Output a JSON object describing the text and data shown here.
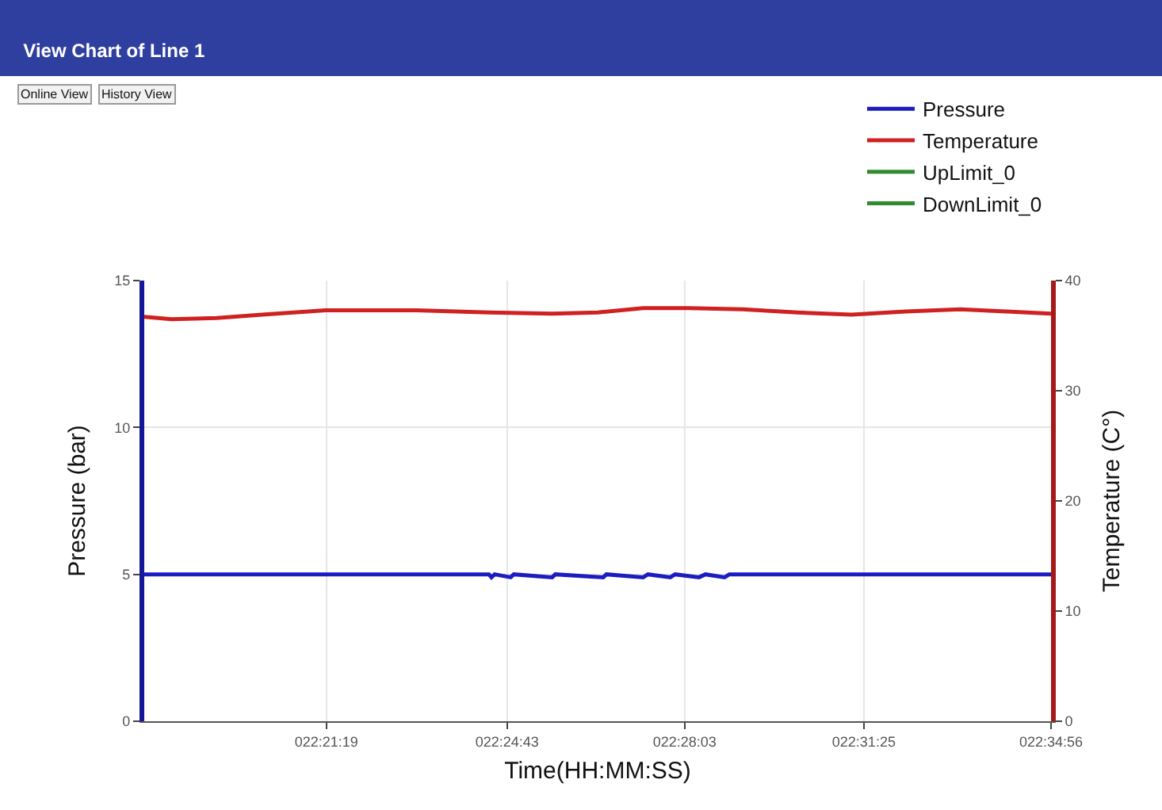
{
  "chart_data": {
    "type": "line",
    "title": "View Chart of Line 1",
    "annotations": [
      "Online View",
      "History View"
    ],
    "xlabel": "Time(HH:MM:SS)",
    "ylabel": "Pressure (bar)",
    "y2label": "Temperature (C°)",
    "xlim": [
      22.2983,
      22.5822
    ],
    "xticks": [
      {
        "value": 22.3553,
        "label": "022:21:19"
      },
      {
        "value": 22.4119,
        "label": "022:24:43"
      },
      {
        "value": 22.4675,
        "label": "022:28:03"
      },
      {
        "value": 22.5236,
        "label": "022:31:25"
      },
      {
        "value": 22.5822,
        "label": "022:34:56"
      }
    ],
    "ylim": [
      0,
      15
    ],
    "yticks": [
      0,
      5,
      10,
      15
    ],
    "y2lim": [
      0,
      40
    ],
    "y2ticks": [
      0,
      10,
      20,
      30,
      40
    ],
    "grid": true,
    "legend": "top right",
    "marker": "none",
    "line_style": "solid",
    "series": [
      {
        "name": "Pressure",
        "color": "#1c1cc0",
        "x": [
          22.2983,
          22.4062,
          22.407,
          22.408,
          22.413,
          22.414,
          22.426,
          22.427,
          22.442,
          22.443,
          22.4545,
          22.456,
          22.463,
          22.4645,
          22.472,
          22.474,
          22.48,
          22.4815,
          22.5822
        ],
        "values": [
          5,
          5,
          4.9,
          5,
          4.9,
          5,
          4.9,
          5,
          4.9,
          5,
          4.9,
          5,
          4.9,
          5,
          4.9,
          5,
          4.9,
          5,
          5
        ]
      },
      {
        "name": "Temperature",
        "color": "#d02020",
        "axis": "y2",
        "x": [
          22.2983,
          22.3068,
          22.321,
          22.3352,
          22.3551,
          22.3835,
          22.4062,
          22.4261,
          22.4403,
          22.4545,
          22.4686,
          22.4857,
          22.5027,
          22.5197,
          22.5368,
          22.5538,
          22.568,
          22.5822
        ],
        "values": [
          36.7,
          36.5,
          36.6,
          36.9,
          37.3,
          37.3,
          37.1,
          37.0,
          37.1,
          37.5,
          37.5,
          37.4,
          37.1,
          36.9,
          37.2,
          37.4,
          37.2,
          37.0
        ]
      },
      {
        "name": "UpLimit_0",
        "color": "#2e8b2e"
      },
      {
        "name": "DownLimit_0",
        "color": "#2e8b2e"
      }
    ]
  }
}
